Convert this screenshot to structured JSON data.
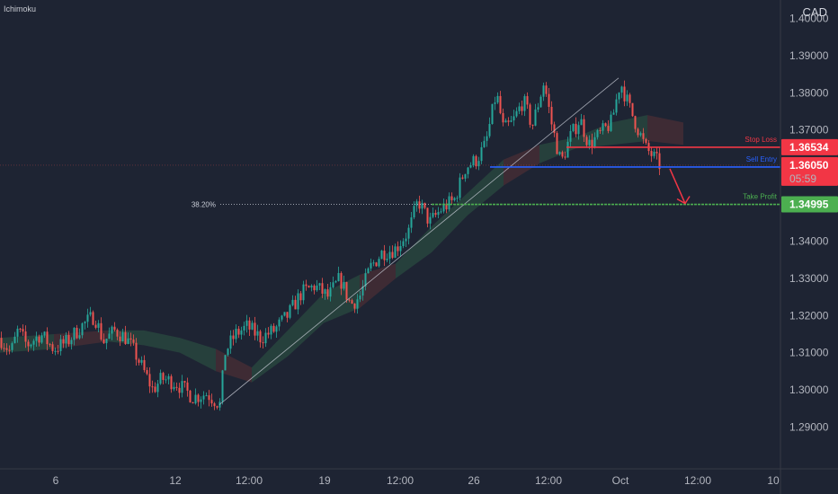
{
  "indicator": "Ichimoku",
  "currency": "CAD",
  "colors": {
    "background": "#1e2433",
    "up": "#26a69a",
    "down": "#ef5350",
    "stop": "#f23645",
    "entry": "#2962ff",
    "target": "#4caf50",
    "cloud_up": "#2a4a40",
    "cloud_down": "#4a2e36"
  },
  "chart_data": {
    "type": "candlestick",
    "ylim": [
      1.28,
      1.41
    ],
    "y_ticks": [
      "1.40000",
      "1.39000",
      "1.38000",
      "1.37000",
      "1.36000",
      "1.35000",
      "1.34000",
      "1.33000",
      "1.32000",
      "1.31000",
      "1.30000",
      "1.29000"
    ],
    "y_tick_values": [
      1.4,
      1.39,
      1.38,
      1.37,
      1.36,
      1.35,
      1.34,
      1.33,
      1.32,
      1.31,
      1.3,
      1.29
    ],
    "x_ticks": [
      "6",
      "12",
      "12:00",
      "19",
      "12:00",
      "26",
      "12:00",
      "Oct",
      "12:00",
      "10"
    ],
    "price_path": [
      [
        0,
        1.314
      ],
      [
        12,
        1.31
      ],
      [
        20,
        1.316
      ],
      [
        30,
        1.312
      ],
      [
        45,
        1.315
      ],
      [
        60,
        1.311
      ],
      [
        75,
        1.313
      ],
      [
        90,
        1.317
      ],
      [
        105,
        1.32
      ],
      [
        115,
        1.313
      ],
      [
        128,
        1.316
      ],
      [
        140,
        1.314
      ],
      [
        150,
        1.31
      ],
      [
        160,
        1.305
      ],
      [
        170,
        1.3
      ],
      [
        180,
        1.303
      ],
      [
        195,
        1.302
      ],
      [
        205,
        1.3
      ],
      [
        215,
        1.298
      ],
      [
        230,
        1.299
      ],
      [
        245,
        1.296
      ],
      [
        250,
        1.31
      ],
      [
        262,
        1.315
      ],
      [
        275,
        1.317
      ],
      [
        290,
        1.314
      ],
      [
        305,
        1.316
      ],
      [
        320,
        1.32
      ],
      [
        335,
        1.326
      ],
      [
        350,
        1.328
      ],
      [
        365,
        1.325
      ],
      [
        378,
        1.33
      ],
      [
        390,
        1.323
      ],
      [
        400,
        1.325
      ],
      [
        412,
        1.333
      ],
      [
        425,
        1.337
      ],
      [
        440,
        1.338
      ],
      [
        455,
        1.343
      ],
      [
        465,
        1.351
      ],
      [
        478,
        1.345
      ],
      [
        492,
        1.349
      ],
      [
        505,
        1.351
      ],
      [
        518,
        1.36
      ],
      [
        530,
        1.362
      ],
      [
        540,
        1.366
      ],
      [
        552,
        1.38
      ],
      [
        560,
        1.37
      ],
      [
        570,
        1.372
      ],
      [
        582,
        1.378
      ],
      [
        592,
        1.371
      ],
      [
        605,
        1.383
      ],
      [
        614,
        1.371
      ],
      [
        624,
        1.361
      ],
      [
        634,
        1.368
      ],
      [
        645,
        1.373
      ],
      [
        655,
        1.366
      ],
      [
        668,
        1.369
      ],
      [
        680,
        1.372
      ],
      [
        690,
        1.383
      ],
      [
        700,
        1.376
      ],
      [
        710,
        1.37
      ],
      [
        718,
        1.365
      ],
      [
        726,
        1.363
      ],
      [
        734,
        1.3605
      ]
    ],
    "cloud": [
      [
        0,
        1.31,
        1.314
      ],
      [
        60,
        1.311,
        1.315
      ],
      [
        120,
        1.313,
        1.316
      ],
      [
        160,
        1.312,
        1.316
      ],
      [
        200,
        1.31,
        1.314
      ],
      [
        240,
        1.305,
        1.311
      ],
      [
        280,
        1.302,
        1.306
      ],
      [
        320,
        1.309,
        1.316
      ],
      [
        360,
        1.318,
        1.326
      ],
      [
        400,
        1.322,
        1.331
      ],
      [
        440,
        1.33,
        1.334
      ],
      [
        480,
        1.337,
        1.344
      ],
      [
        520,
        1.347,
        1.353
      ],
      [
        560,
        1.355,
        1.362
      ],
      [
        600,
        1.361,
        1.366
      ],
      [
        640,
        1.365,
        1.368
      ],
      [
        680,
        1.366,
        1.372
      ],
      [
        720,
        1.367,
        1.374
      ],
      [
        760,
        1.366,
        1.372
      ]
    ],
    "trendline": [
      [
        244,
        1.296
      ],
      [
        688,
        1.384
      ]
    ],
    "levels": [
      {
        "name": "Stop Loss",
        "value": 1.36534,
        "label": "1.36534",
        "x_start": 630
      },
      {
        "name": "Sell Entry",
        "value": 1.36,
        "label": "",
        "x_start": 545
      },
      {
        "name": "Take Profit",
        "value": 1.34995,
        "label": "1.34995",
        "x_start": 480
      }
    ],
    "fib_label": "38.20%",
    "current_price": {
      "value": 1.3605,
      "label": "1.36050",
      "countdown": "05:59"
    }
  }
}
